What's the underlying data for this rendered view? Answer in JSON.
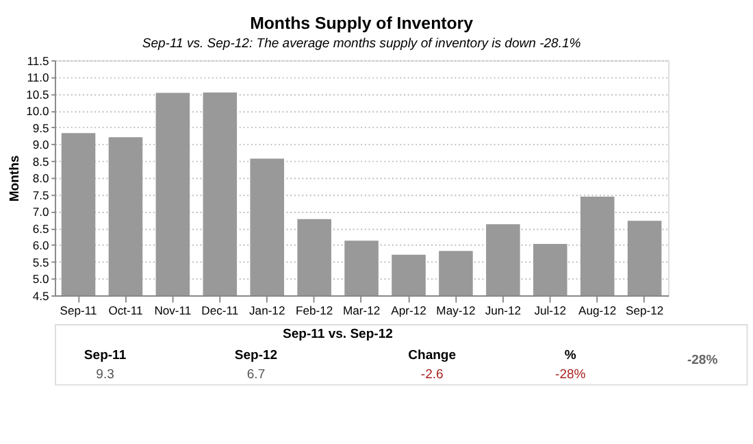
{
  "chart_data": {
    "type": "bar",
    "title": "Months Supply of Inventory",
    "subtitle": "Sep-11 vs. Sep-12: The average months supply of inventory is down -28.1%",
    "ylabel": "Months",
    "categories": [
      "Sep-11",
      "Oct-11",
      "Nov-11",
      "Dec-11",
      "Jan-12",
      "Feb-12",
      "Mar-12",
      "Apr-12",
      "May-12",
      "Jun-12",
      "Jul-12",
      "Aug-12",
      "Sep-12"
    ],
    "values": [
      9.33,
      9.21,
      10.53,
      10.54,
      8.57,
      6.77,
      6.13,
      5.71,
      5.82,
      6.62,
      6.03,
      7.44,
      6.72
    ],
    "color": "#999999",
    "ylim": [
      4.5,
      11.5
    ],
    "yticks": [
      {
        "value": 4.5,
        "label": "4.5"
      },
      {
        "value": 5,
        "label": "5.0"
      },
      {
        "value": 5.5,
        "label": "5.5"
      },
      {
        "value": 6,
        "label": "6.0"
      },
      {
        "value": 6.5,
        "label": "6.5"
      },
      {
        "value": 7,
        "label": "7.0"
      },
      {
        "value": 7.5,
        "label": "7.5"
      },
      {
        "value": 8,
        "label": "8.0"
      },
      {
        "value": 8.5,
        "label": "8.5"
      },
      {
        "value": 9,
        "label": "9.0"
      },
      {
        "value": 9.5,
        "label": "9.5"
      },
      {
        "value": 10,
        "label": "10.0"
      },
      {
        "value": 10.5,
        "label": "10.5"
      },
      {
        "value": 11,
        "label": "11.0"
      },
      {
        "value": 11.5,
        "label": "11.5"
      }
    ],
    "grid": "y",
    "annotations": [
      "Sep-11 vs. Sep-12",
      "Sep-11",
      "Sep-12",
      "Change",
      "%",
      "9.3",
      "6.7",
      "-2.6",
      "-28%",
      "-28%"
    ]
  }
}
